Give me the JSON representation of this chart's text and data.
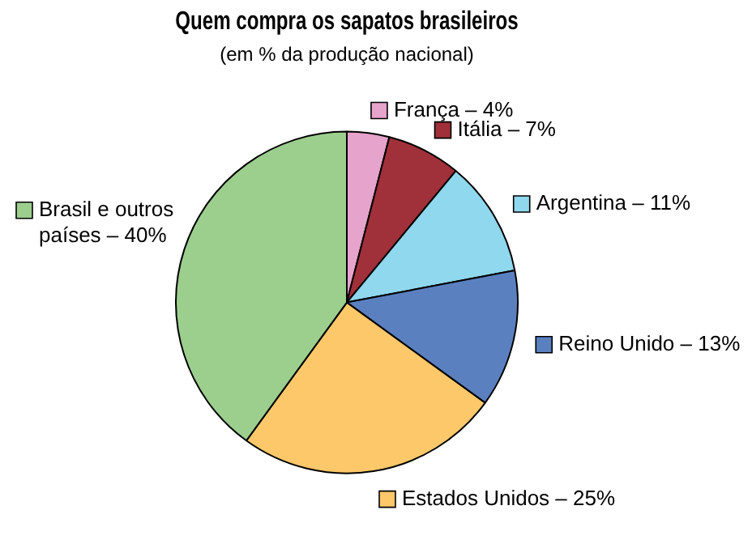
{
  "chart_data": {
    "type": "pie",
    "title": "Quem compra os sapatos brasileiros",
    "subtitle": "(em % da produção nacional)",
    "categories": [
      "França",
      "Itália",
      "Argentina",
      "Reino Unido",
      "Estados Unidos",
      "Brasil e outros países"
    ],
    "values": [
      4,
      7,
      11,
      13,
      25,
      40
    ],
    "value_labels": [
      "4%",
      "7%",
      "11%",
      "13%",
      "25%",
      "40%"
    ],
    "colors": [
      "#e6a3cb",
      "#a0303a",
      "#8fd8ee",
      "#5a80c0",
      "#fdc86a",
      "#9ccf8e"
    ],
    "legend": "right"
  }
}
